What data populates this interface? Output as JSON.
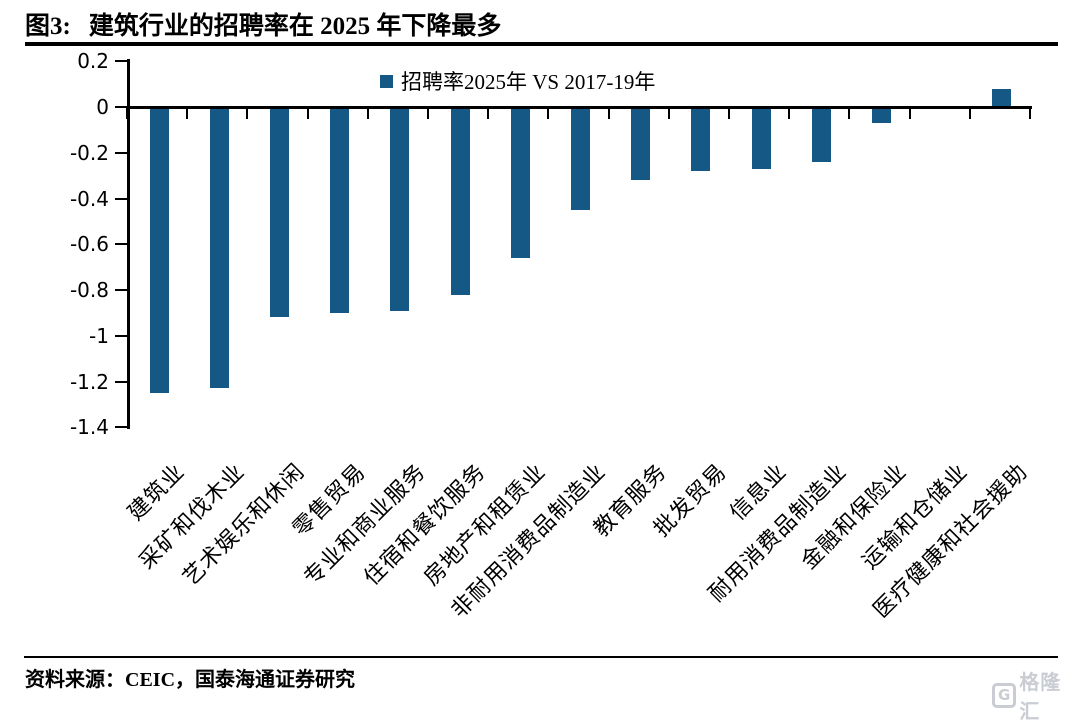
{
  "header": {
    "figure_label": "图3:",
    "title": "建筑行业的招聘率在 2025 年下降最多"
  },
  "legend": {
    "label": "招聘率2025年 VS 2017-19年",
    "marker_color": "#155885"
  },
  "chart_data": {
    "type": "bar",
    "title": "建筑行业的招聘率在 2025 年下降最多",
    "series_name": "招聘率2025年 VS 2017-19年",
    "categories": [
      "建筑业",
      "采矿和伐木业",
      "艺术娱乐和休闲",
      "零售贸易",
      "专业和商业服务",
      "住宿和餐饮服务",
      "房地产和租赁业",
      "非耐用消费品制造业",
      "教育服务",
      "批发贸易",
      "信息业",
      "耐用消费品制造业",
      "金融和保险业",
      "运输和仓储业",
      "医疗健康和社会援助"
    ],
    "values": [
      -1.25,
      -1.23,
      -0.92,
      -0.9,
      -0.89,
      -0.82,
      -0.66,
      -0.45,
      -0.32,
      -0.28,
      -0.27,
      -0.24,
      -0.07,
      0.0,
      0.08
    ],
    "xlabel": "",
    "ylabel": "",
    "ylim": [
      -1.4,
      0.2
    ],
    "yticks": [
      0.2,
      0,
      -0.2,
      -0.4,
      -0.6,
      -0.8,
      -1,
      -1.2,
      -1.4
    ],
    "ytick_labels": [
      "0.2",
      "0",
      "-0.2",
      "-0.4",
      "-0.6",
      "-0.8",
      "-1",
      "-1.2",
      "-1.4"
    ],
    "bar_color": "#155885",
    "grid": false,
    "legend_position": "top-center",
    "x_axis_position": "zero"
  },
  "footer": {
    "source": "资料来源：CEIC，国泰海通证券研究",
    "logo_g": "G",
    "logo_text": "格隆汇"
  },
  "colors": {
    "bar": "#155885",
    "axis": "#000000",
    "logo_gray": "#c9ccd2"
  }
}
